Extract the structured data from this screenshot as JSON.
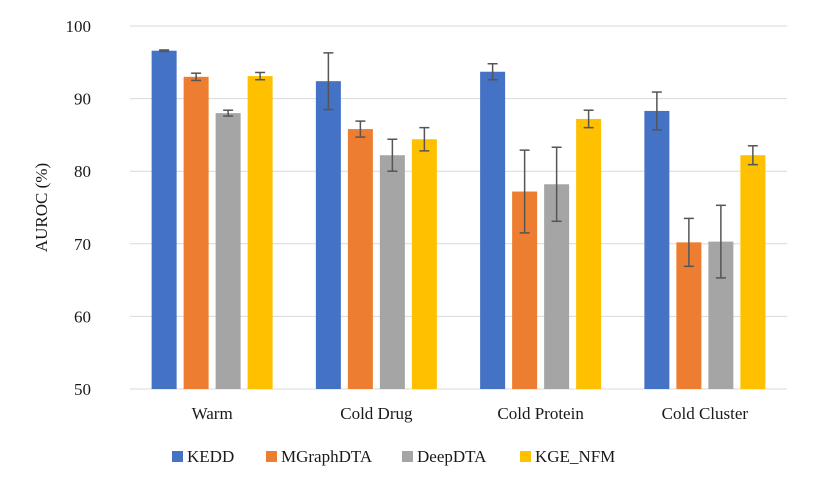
{
  "chart_data": {
    "type": "bar",
    "title": "",
    "xlabel": "",
    "ylabel": "AUROC (%)",
    "ylim": [
      50,
      100
    ],
    "yticks": [
      50,
      60,
      70,
      80,
      90,
      100
    ],
    "grid": true,
    "legend_position": "bottom",
    "categories": [
      "Warm",
      "Cold Drug",
      "Cold Protein",
      "Cold Cluster"
    ],
    "series": [
      {
        "name": "KEDD",
        "color": "#4472C4",
        "values": [
          96.6,
          92.4,
          93.7,
          88.3
        ],
        "errors": [
          0.1,
          3.9,
          1.1,
          2.6
        ]
      },
      {
        "name": "MGraphDTA",
        "color": "#ED7D31",
        "values": [
          93.0,
          85.8,
          77.2,
          70.2
        ],
        "errors": [
          0.5,
          1.1,
          5.7,
          3.3
        ]
      },
      {
        "name": "DeepDTA",
        "color": "#A5A5A5",
        "values": [
          88.0,
          82.2,
          78.2,
          70.3
        ],
        "errors": [
          0.4,
          2.2,
          5.1,
          5.0
        ]
      },
      {
        "name": "KGE_NFM",
        "color": "#FFC000",
        "values": [
          93.1,
          84.4,
          87.2,
          82.2
        ],
        "errors": [
          0.5,
          1.6,
          1.2,
          1.3
        ]
      }
    ]
  }
}
